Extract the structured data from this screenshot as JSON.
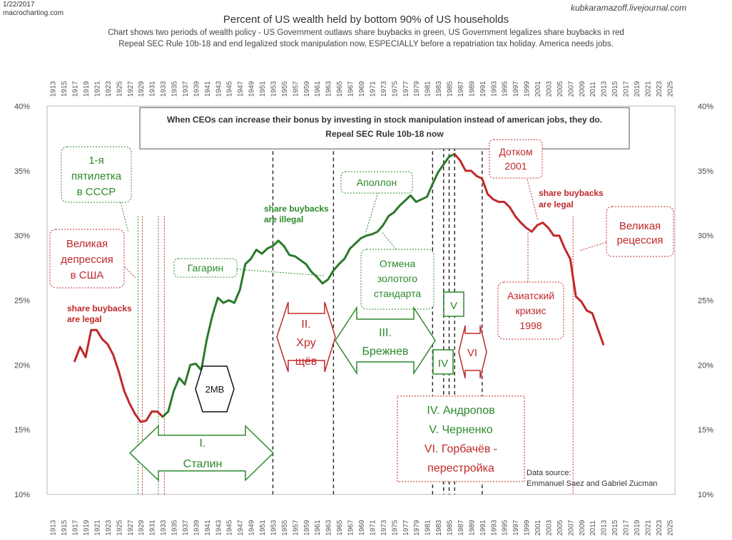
{
  "header": {
    "date": "1/22/2017",
    "site": "macrocharting.com",
    "watermark": "kubkaramazoff.livejournal.com",
    "title": "Percent of US wealth held by bottom 90% of US households",
    "subtitle_1": "Chart shows two periods of wealth policy - US Government outlaws share buybacks in green,  US Government legalizes share buybacks in red",
    "subtitle_2": "Repeal SEC Rule 10b-18 and end legalized stock manipulation now, ESPECIALLY before a repatriation tax holiday. America needs jobs."
  },
  "chart_data": {
    "type": "line",
    "xlim": [
      1912,
      2026
    ],
    "ylim": [
      10,
      40
    ],
    "x_ticks": [
      1913,
      1915,
      1917,
      1919,
      1921,
      1923,
      1925,
      1927,
      1929,
      1931,
      1933,
      1935,
      1937,
      1939,
      1941,
      1943,
      1945,
      1947,
      1949,
      1951,
      1953,
      1955,
      1957,
      1959,
      1961,
      1963,
      1965,
      1967,
      1969,
      1971,
      1973,
      1975,
      1977,
      1979,
      1981,
      1983,
      1985,
      1987,
      1989,
      1991,
      1993,
      1995,
      1997,
      1999,
      2001,
      2003,
      2005,
      2007,
      2009,
      2011,
      2013,
      2015,
      2017,
      2019,
      2021,
      2023,
      2025
    ],
    "y_ticks": [
      {
        "value": 10,
        "label": "10%"
      },
      {
        "value": 15,
        "label": "15%"
      },
      {
        "value": 20,
        "label": "20%"
      },
      {
        "value": 25,
        "label": "25%"
      },
      {
        "value": 30,
        "label": "30%"
      },
      {
        "value": 35,
        "label": "35%"
      },
      {
        "value": 40,
        "label": "40%"
      }
    ],
    "segments": [
      {
        "color": "#c0282a",
        "points": [
          [
            1917,
            20.3
          ],
          [
            1918,
            21.4
          ],
          [
            1919,
            20.6
          ],
          [
            1920,
            22.7
          ],
          [
            1921,
            22.7
          ],
          [
            1922,
            22.0
          ],
          [
            1923,
            21.6
          ],
          [
            1924,
            20.8
          ],
          [
            1925,
            19.5
          ],
          [
            1926,
            18.0
          ],
          [
            1927,
            17.0
          ],
          [
            1928,
            16.2
          ],
          [
            1929,
            15.6
          ],
          [
            1930,
            15.7
          ],
          [
            1931,
            16.4
          ],
          [
            1932,
            16.4
          ],
          [
            1933,
            16.0
          ]
        ]
      },
      {
        "color": "#2b7a2b",
        "points": [
          [
            1933,
            16.0
          ],
          [
            1934,
            16.4
          ],
          [
            1935,
            18.0
          ],
          [
            1936,
            19.0
          ],
          [
            1937,
            18.5
          ],
          [
            1938,
            20.0
          ],
          [
            1939,
            20.1
          ],
          [
            1940,
            19.6
          ],
          [
            1941,
            22.0
          ],
          [
            1942,
            23.8
          ],
          [
            1943,
            25.2
          ],
          [
            1944,
            24.8
          ],
          [
            1945,
            25.0
          ],
          [
            1946,
            24.8
          ],
          [
            1947,
            25.8
          ],
          [
            1948,
            27.8
          ],
          [
            1949,
            28.2
          ],
          [
            1950,
            28.9
          ],
          [
            1951,
            28.6
          ],
          [
            1952,
            29.0
          ],
          [
            1953,
            29.2
          ],
          [
            1954,
            29.6
          ],
          [
            1955,
            29.2
          ],
          [
            1956,
            28.5
          ],
          [
            1957,
            28.4
          ],
          [
            1958,
            28.1
          ],
          [
            1959,
            27.8
          ],
          [
            1960,
            27.2
          ],
          [
            1961,
            26.8
          ],
          [
            1962,
            26.3
          ],
          [
            1963,
            26.6
          ],
          [
            1964,
            27.3
          ],
          [
            1965,
            27.8
          ],
          [
            1966,
            28.2
          ],
          [
            1967,
            29.0
          ],
          [
            1968,
            29.4
          ],
          [
            1969,
            29.8
          ],
          [
            1970,
            30.0
          ],
          [
            1971,
            30.1
          ],
          [
            1972,
            30.3
          ],
          [
            1973,
            30.8
          ],
          [
            1974,
            31.5
          ],
          [
            1975,
            31.8
          ],
          [
            1976,
            32.3
          ],
          [
            1977,
            32.7
          ],
          [
            1978,
            33.1
          ],
          [
            1979,
            32.6
          ],
          [
            1980,
            32.8
          ],
          [
            1981,
            33.0
          ],
          [
            1982,
            34.0
          ],
          [
            1983,
            34.9
          ],
          [
            1984,
            35.5
          ],
          [
            1985,
            36.1
          ],
          [
            1986,
            36.3
          ]
        ]
      },
      {
        "color": "#c0282a",
        "points": [
          [
            1986,
            36.3
          ],
          [
            1987,
            35.8
          ],
          [
            1988,
            35.0
          ],
          [
            1989,
            35.0
          ],
          [
            1990,
            34.6
          ],
          [
            1991,
            34.4
          ],
          [
            1992,
            33.2
          ],
          [
            1993,
            32.8
          ],
          [
            1994,
            32.6
          ],
          [
            1995,
            32.6
          ],
          [
            1996,
            32.2
          ],
          [
            1997,
            31.5
          ],
          [
            1998,
            31.0
          ],
          [
            1999,
            30.6
          ],
          [
            2000,
            30.3
          ],
          [
            2001,
            30.8
          ],
          [
            2002,
            31.0
          ],
          [
            2003,
            30.6
          ],
          [
            2004,
            30.0
          ],
          [
            2005,
            30.0
          ],
          [
            2006,
            29.0
          ],
          [
            2007,
            28.2
          ],
          [
            2008,
            25.3
          ],
          [
            2009,
            24.9
          ],
          [
            2010,
            24.2
          ],
          [
            2011,
            24.0
          ],
          [
            2012,
            22.8
          ],
          [
            2013,
            21.6
          ]
        ]
      }
    ],
    "vlines": [
      {
        "x": 1928.5,
        "color": "#2b7a2b",
        "dash": "2,2"
      },
      {
        "x": 1929.3,
        "color": "#c0282a",
        "dash": "2,2"
      },
      {
        "x": 1932.2,
        "color": "#2b7a2b",
        "dash": "2,2"
      },
      {
        "x": 1933.3,
        "color": "#c0282a",
        "dash": "2,2"
      },
      {
        "x": 1953,
        "color": "#222222",
        "dash": "5,4"
      },
      {
        "x": 1964,
        "color": "#222222",
        "dash": "5,4"
      },
      {
        "x": 1982,
        "color": "#222222",
        "dash": "5,4"
      },
      {
        "x": 1984,
        "color": "#222222",
        "dash": "5,4"
      },
      {
        "x": 1985,
        "color": "#222222",
        "dash": "5,4"
      },
      {
        "x": 1986,
        "color": "#222222",
        "dash": "5,4"
      },
      {
        "x": 1991,
        "color": "#222222",
        "dash": "5,4"
      },
      {
        "x": 2007.5,
        "color": "#c0282a",
        "dash": "2,2"
      }
    ],
    "annotations": {
      "top_box_1": "When CEOs can increase their bonus by investing in stock manipulation instead of american jobs, they do.",
      "top_box_2": "Repeal SEC Rule 10b-18 now",
      "legal_left_1": "share buybacks",
      "legal_left_2": "are legal",
      "illegal_1": "share buybacks",
      "illegal_2": "are illegal",
      "legal_right_1": "share buybacks",
      "legal_right_2": "are legal",
      "five_year_1": "1-я",
      "five_year_2": "пятилетка",
      "five_year_3": "в СССР",
      "depression_1": "Великая",
      "depression_2": "депрессия",
      "depression_3": "в США",
      "gagarin": "Гагарин",
      "apollo": "Аполлон",
      "gold_1": "Отмена",
      "gold_2": "золотого",
      "gold_3": "стандарта",
      "dotcom_1": "Дотком",
      "dotcom_2": "2001",
      "recession_1": "Великая",
      "recession_2": "рецессия",
      "asian_1": "Азиатский",
      "asian_2": "кризис",
      "asian_3": "1998",
      "ww2": "2МВ",
      "stalin_1": "I.",
      "stalin_2": "Сталин",
      "khrushchev_1": "II.",
      "khrushchev_2": "Хру",
      "khrushchev_3": "щёв",
      "brezhnev_1": "III.",
      "brezhnev_2": "Брежнев",
      "iv": "IV",
      "v": "V",
      "vi": "VI",
      "leaders_1": "IV. Андропов",
      "leaders_2": "V. Черненко",
      "leaders_3": "VI. Горбачёв -",
      "leaders_4": "перестройка",
      "source_1": "Data source:",
      "source_2": "Emmanuel Saez and Gabriel Zucman"
    }
  }
}
